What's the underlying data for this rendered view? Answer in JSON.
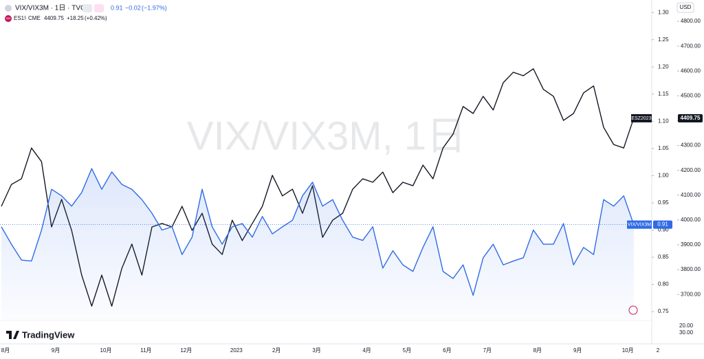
{
  "chart_data": {
    "type": "line",
    "watermark": "VIX/VIX3M, 1日",
    "currency": "USD",
    "brand": "TradingView",
    "legend": [
      {
        "label": "VIX/VIX3M · 1日 · TVC",
        "change": "−0.02",
        "change_pct": "(−1.97%)"
      },
      {
        "icon": "500",
        "label": "ES1!",
        "exchange": "CME",
        "change": "+18.25",
        "change_pct": "(+0.42%)"
      }
    ],
    "price_tag": "ESZ2023",
    "lower_pane_labels": [
      "20.00",
      "30.00"
    ],
    "categories": [
      "8月",
      null,
      null,
      null,
      null,
      "9月",
      null,
      null,
      null,
      null,
      "10月",
      null,
      null,
      null,
      "11月",
      null,
      null,
      null,
      "12月",
      null,
      null,
      null,
      null,
      "2023",
      null,
      null,
      null,
      "2月",
      null,
      null,
      null,
      "3月",
      null,
      null,
      null,
      null,
      "4月",
      null,
      null,
      null,
      "5月",
      null,
      null,
      null,
      "6月",
      null,
      null,
      null,
      "7月",
      null,
      null,
      null,
      null,
      "8月",
      null,
      null,
      null,
      "9月",
      null,
      null,
      null,
      null,
      "10月",
      null,
      null,
      "2"
    ],
    "ylim": [
      3598,
      4886
    ],
    "yticks": [
      {
        "value": 3700,
        "label": "3700.00"
      },
      {
        "value": 3800,
        "label": "3800.00"
      },
      {
        "value": 3900,
        "label": "3900.00"
      },
      {
        "value": 4000,
        "label": "4000.00"
      },
      {
        "value": 4100,
        "label": "4100.00"
      },
      {
        "value": 4200,
        "label": "4200.00"
      },
      {
        "value": 4300,
        "label": "4300.00"
      },
      {
        "value": 4400,
        "label": "4400.00"
      },
      {
        "value": 4500,
        "label": "4500.00"
      },
      {
        "value": 4600,
        "label": "4600.00"
      },
      {
        "value": 4700,
        "label": "4700.00"
      },
      {
        "value": 4800,
        "label": "4800.00"
      }
    ],
    "y2lim": [
      0.735,
      1.323
    ],
    "y2ticks": [
      0.75,
      {
        "value": 0.8,
        "label": "0.80"
      },
      0.85,
      {
        "value": 0.9,
        "label": "0.90"
      },
      0.95,
      {
        "value": 1,
        "label": "1.00"
      },
      1.05,
      {
        "value": 1.1,
        "label": "1.10"
      },
      1.15,
      {
        "value": 1.2,
        "label": "1.20"
      },
      1.25,
      {
        "value": 1.3,
        "label": "1.30"
      }
    ],
    "grid": false,
    "series": [
      {
        "name": "ES1!",
        "color": "#131722",
        "axis": "y",
        "values": [
          4055,
          4143,
          4166,
          4290,
          4235,
          3972,
          4083,
          3958,
          3778,
          3653,
          3778,
          3653,
          3805,
          3903,
          3778,
          3972,
          3986,
          3972,
          4055,
          3958,
          4027,
          3903,
          3861,
          3999,
          3917,
          3986,
          4055,
          4180,
          4097,
          4124,
          4027,
          4138,
          3930,
          3999,
          4027,
          4124,
          4166,
          4152,
          4193,
          4110,
          4152,
          4138,
          4221,
          4166,
          4290,
          4346,
          4457,
          4429,
          4498,
          4443,
          4553,
          4595,
          4581,
          4609,
          4526,
          4498,
          4401,
          4429,
          4512,
          4540,
          4373,
          4304,
          4290,
          4409.75,
          null,
          null
        ]
      },
      {
        "name": "VIX/VIX3M",
        "color": "#2f6be6",
        "axis": "y2",
        "values": [
          0.906,
          0.874,
          0.845,
          0.843,
          0.9,
          0.975,
          0.963,
          0.944,
          0.969,
          1.013,
          0.975,
          1.007,
          0.984,
          0.975,
          0.956,
          0.931,
          0.9,
          0.906,
          0.855,
          0.887,
          0.975,
          0.906,
          0.874,
          0.906,
          0.912,
          0.887,
          0.925,
          0.893,
          0.906,
          0.918,
          0.963,
          0.988,
          0.944,
          0.956,
          0.918,
          0.887,
          0.881,
          0.906,
          0.83,
          0.862,
          0.836,
          0.824,
          0.868,
          0.906,
          0.824,
          0.811,
          0.836,
          0.78,
          0.849,
          0.874,
          0.836,
          0.843,
          0.849,
          0.9,
          0.874,
          0.874,
          0.912,
          0.836,
          0.868,
          0.855,
          0.956,
          0.944,
          0.963,
          0.91,
          null,
          null
        ]
      }
    ]
  }
}
